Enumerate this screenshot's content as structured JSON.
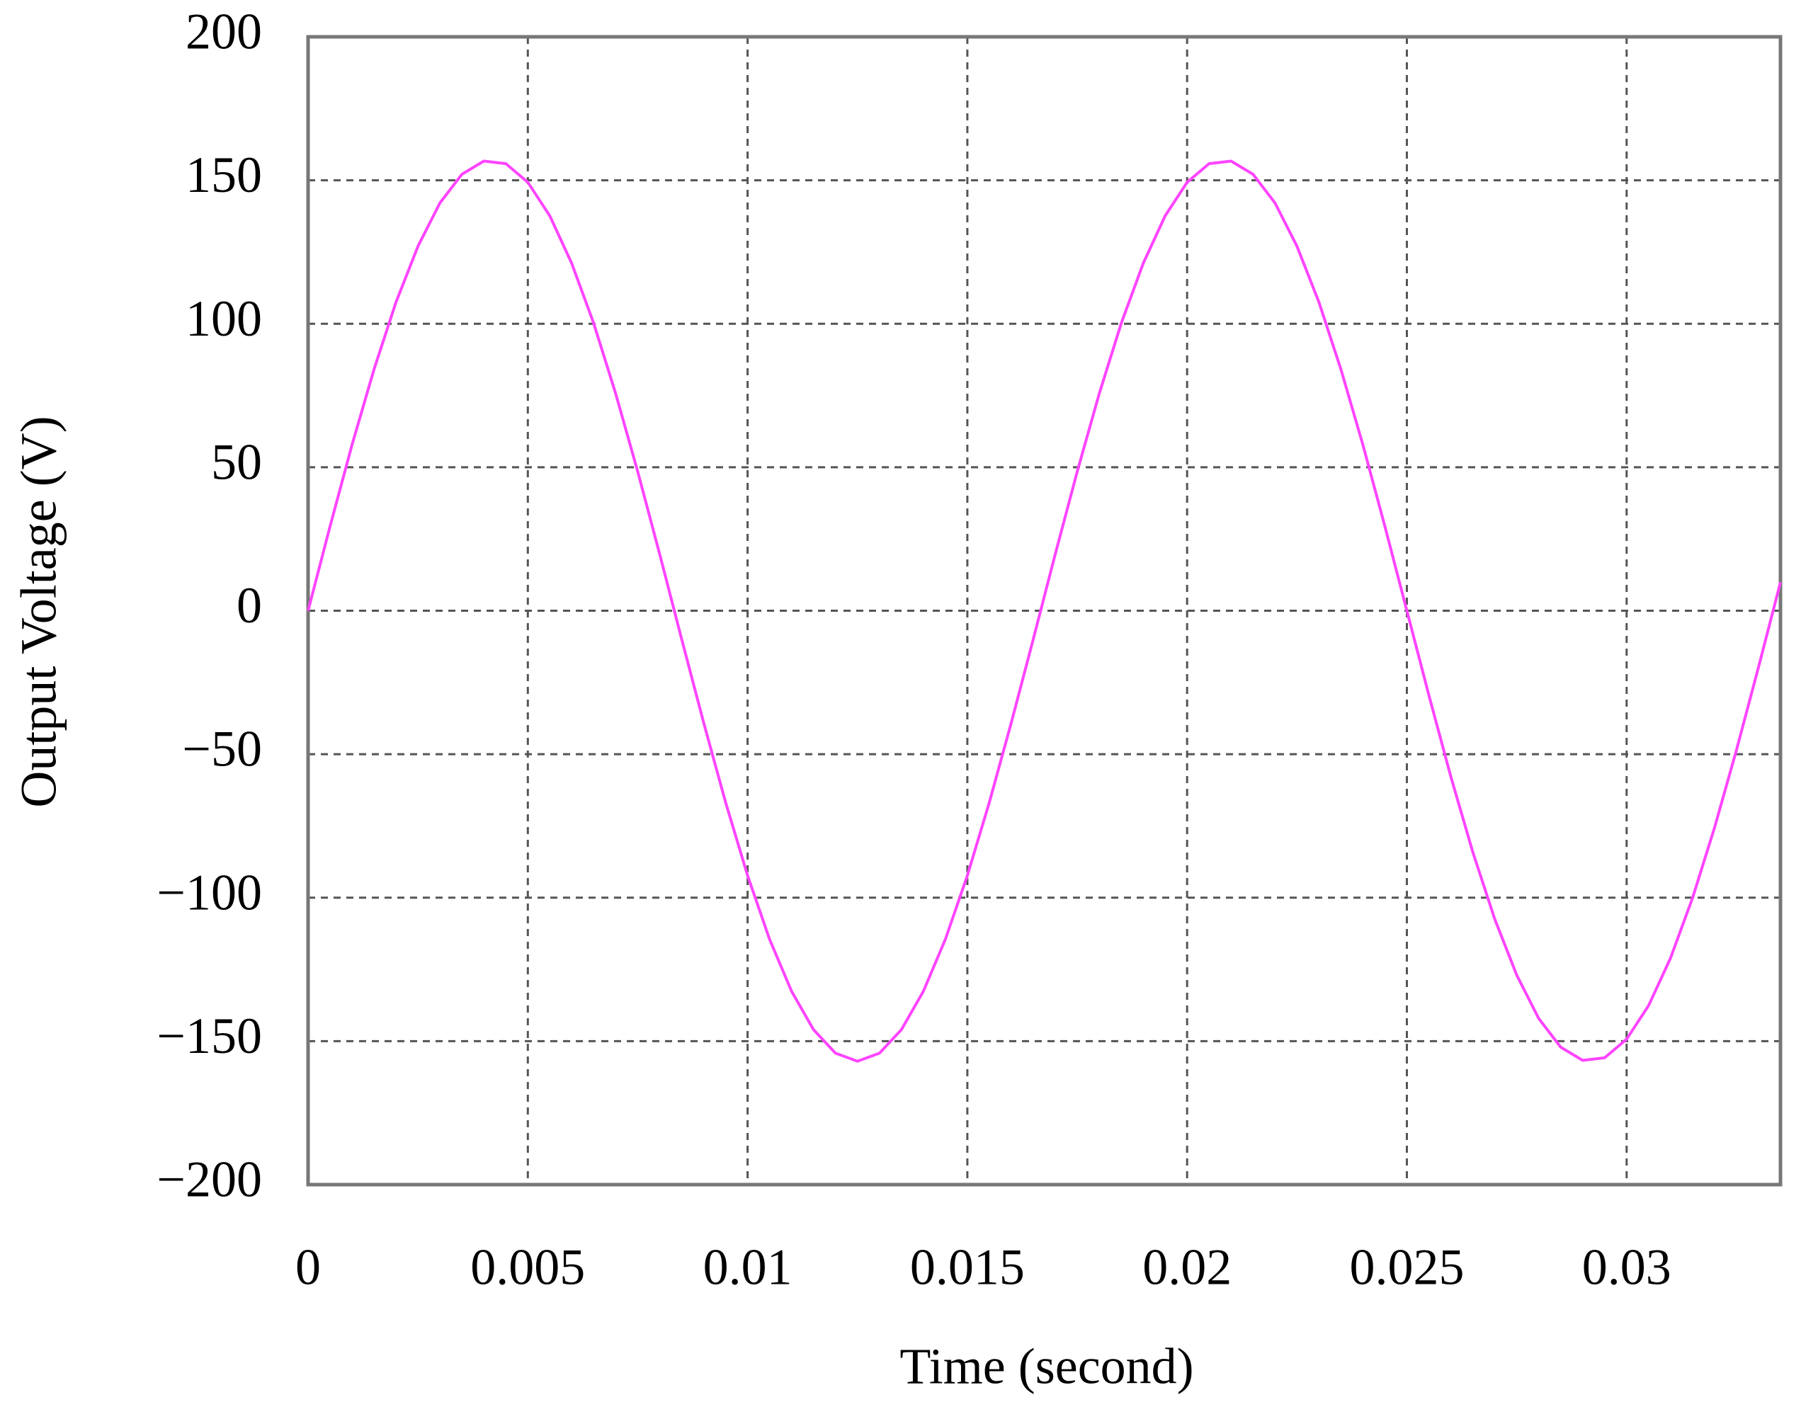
{
  "chart_data": {
    "type": "line",
    "x_label": "Time (second)",
    "y_label": "Output Voltage (V)",
    "x": [
      0,
      0.0005,
      0.001,
      0.0015,
      0.002,
      0.0025,
      0.003,
      0.0035,
      0.004,
      0.0045,
      0.005,
      0.0055,
      0.006,
      0.0065,
      0.007,
      0.0075,
      0.008,
      0.0085,
      0.009,
      0.0095,
      0.01,
      0.0105,
      0.011,
      0.0115,
      0.012,
      0.0125,
      0.013,
      0.0135,
      0.014,
      0.0145,
      0.015,
      0.0155,
      0.016,
      0.0165,
      0.017,
      0.0175,
      0.018,
      0.0185,
      0.019,
      0.0195,
      0.02,
      0.0205,
      0.021,
      0.0215,
      0.022,
      0.0225,
      0.023,
      0.0235,
      0.024,
      0.0245,
      0.025,
      0.0255,
      0.026,
      0.0265,
      0.027,
      0.0275,
      0.028,
      0.0285,
      0.029,
      0.0295,
      0.03,
      0.0305,
      0.031,
      0.0315,
      0.032,
      0.0325,
      0.033,
      0.0335
    ],
    "series": [
      {
        "color": "#ff44ff",
        "values": [
          0,
          29.4,
          57.8,
          84.1,
          107.5,
          127.0,
          142.1,
          152.1,
          156.7,
          155.8,
          149.3,
          137.6,
          121.0,
          100.1,
          75.6,
          48.5,
          19.7,
          -9.9,
          -39.0,
          -66.8,
          -92.3,
          -114.5,
          -132.6,
          -146.0,
          -154.2,
          -157,
          -154.2,
          -146.0,
          -132.6,
          -114.5,
          -92.3,
          -66.8,
          -39.0,
          -9.9,
          19.7,
          48.5,
          75.6,
          100.1,
          121.0,
          137.6,
          149.3,
          155.8,
          156.7,
          152.1,
          142.1,
          127.0,
          107.5,
          84.1,
          57.8,
          29.4,
          0,
          -29.4,
          -57.8,
          -84.1,
          -107.5,
          -127.0,
          -142.1,
          -152.1,
          -156.7,
          -155.8,
          -149.3,
          -137.6,
          -121.0,
          -100.1,
          -75.6,
          -48.5,
          -19.7,
          9.9
        ]
      }
    ],
    "xlim": [
      0,
      0.0335
    ],
    "ylim": [
      -200,
      200
    ],
    "xticks": [
      0,
      0.005,
      0.01,
      0.015,
      0.02,
      0.025,
      0.03
    ],
    "yticks": [
      {
        "value": -200,
        "label": "−200"
      },
      {
        "value": -150,
        "label": "−150"
      },
      {
        "value": -100,
        "label": "−100"
      },
      {
        "value": -50,
        "label": "−50"
      },
      0,
      50,
      100,
      150,
      200
    ],
    "grid": true
  }
}
